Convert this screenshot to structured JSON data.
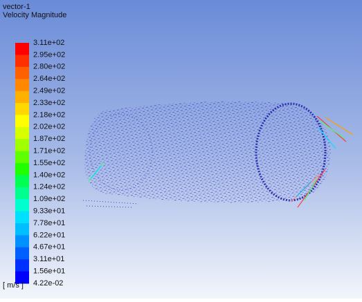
{
  "header": {
    "title": "vector-1",
    "subtitle": "Velocity Magnitude"
  },
  "legend": {
    "unit": "[ m/s ]",
    "labels": [
      "3.11e+02",
      "2.95e+02",
      "2.80e+02",
      "2.64e+02",
      "2.49e+02",
      "2.33e+02",
      "2.18e+02",
      "2.02e+02",
      "1.87e+02",
      "1.71e+02",
      "1.55e+02",
      "1.40e+02",
      "1.24e+02",
      "1.09e+02",
      "9.33e+01",
      "7.78e+01",
      "6.22e+01",
      "4.67e+01",
      "3.11e+01",
      "1.56e+01",
      "4.22e-02"
    ]
  }
}
